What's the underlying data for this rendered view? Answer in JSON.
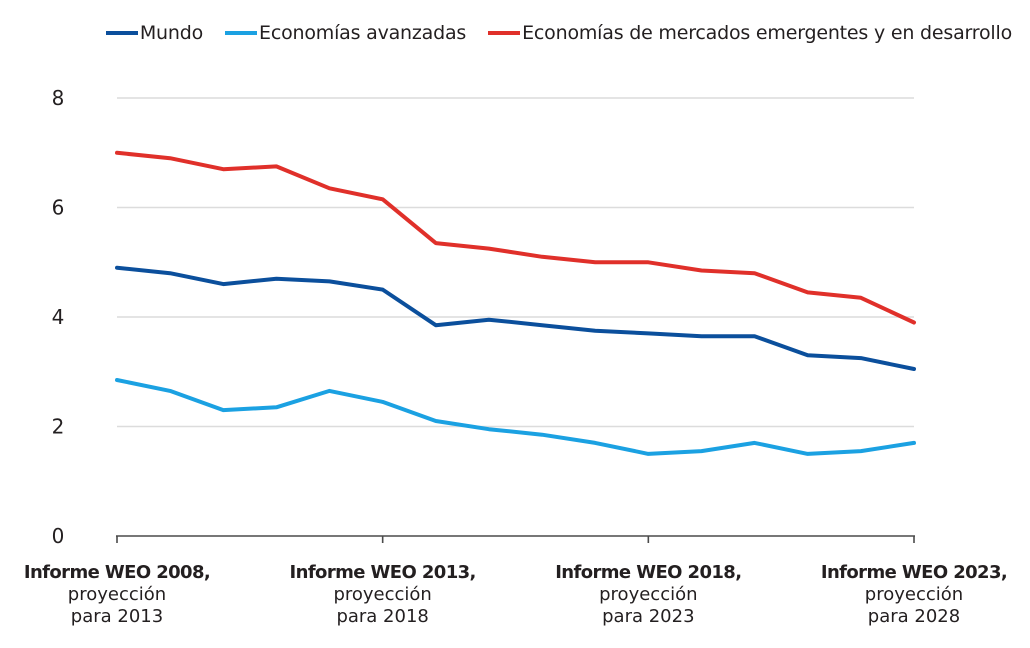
{
  "chart_data": {
    "type": "line",
    "title": "",
    "xlabel": "",
    "ylabel": "",
    "ylim": [
      0,
      8
    ],
    "yticks": [
      0,
      2,
      4,
      6,
      8
    ],
    "grid": true,
    "legend_position": "top-right",
    "x": [
      "2008",
      "2009",
      "2010",
      "2011",
      "2012",
      "2013",
      "2014",
      "2015",
      "2016",
      "2017",
      "2018",
      "2019",
      "2020",
      "2021",
      "2022",
      "2023"
    ],
    "x_tick_labels": [
      {
        "index": 0,
        "bold": "Informe WEO 2008,",
        "line2": "proyección",
        "line3": "para 2013"
      },
      {
        "index": 5,
        "bold": "Informe WEO 2013,",
        "line2": "proyección",
        "line3": "para 2018"
      },
      {
        "index": 10,
        "bold": "Informe WEO 2018,",
        "line2": "proyección",
        "line3": "para 2023"
      },
      {
        "index": 15,
        "bold": "Informe WEO 2023,",
        "line2": "proyección",
        "line3": "para 2028"
      }
    ],
    "series": [
      {
        "name": "Mundo",
        "color": "#0b4f9c",
        "values": [
          4.9,
          4.8,
          4.6,
          4.7,
          4.65,
          4.5,
          3.85,
          3.95,
          3.85,
          3.75,
          3.7,
          3.65,
          3.65,
          3.3,
          3.25,
          3.05
        ]
      },
      {
        "name": "Economías avanzadas",
        "color": "#1ba1e2",
        "values": [
          2.85,
          2.65,
          2.3,
          2.35,
          2.65,
          2.45,
          2.1,
          1.95,
          1.85,
          1.7,
          1.5,
          1.55,
          1.7,
          1.5,
          1.55,
          1.7
        ]
      },
      {
        "name": "Economías de mercados emergentes y en desarrollo",
        "color": "#e0302a",
        "values": [
          7.0,
          6.9,
          6.7,
          6.75,
          6.35,
          6.15,
          5.35,
          5.25,
          5.1,
          5.0,
          5.0,
          4.85,
          4.8,
          4.45,
          4.35,
          3.9
        ]
      }
    ]
  }
}
